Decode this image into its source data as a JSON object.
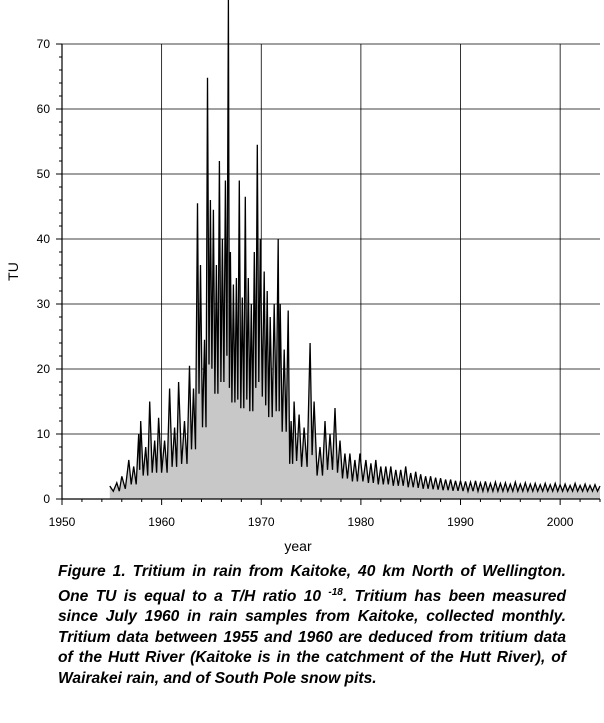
{
  "chart_data": {
    "type": "area",
    "title": "",
    "xlabel": "year",
    "ylabel": "TU",
    "xlim": [
      1950,
      2004
    ],
    "ylim": [
      0,
      70
    ],
    "xticks": [
      "1950",
      "1960",
      "1970",
      "1980",
      "1990",
      "2000"
    ],
    "yticks": [
      "0",
      "10",
      "20",
      "30",
      "40",
      "50",
      "60",
      "70"
    ],
    "grid": true,
    "fill_color": "#c8c8c8",
    "line_color": "#000000",
    "series": [
      {
        "name": "Tritium in rain, Kaitoke (monthly)",
        "peaks": [
          [
            1954.8,
            2
          ],
          [
            1955.5,
            2.5
          ],
          [
            1956.0,
            3.5
          ],
          [
            1956.7,
            6
          ],
          [
            1957.2,
            5
          ],
          [
            1957.7,
            10
          ],
          [
            1957.9,
            12
          ],
          [
            1958.4,
            8
          ],
          [
            1958.8,
            15
          ],
          [
            1959.3,
            9
          ],
          [
            1959.7,
            12.5
          ],
          [
            1960.3,
            9
          ],
          [
            1960.8,
            17
          ],
          [
            1961.3,
            11
          ],
          [
            1961.7,
            18
          ],
          [
            1962.3,
            12
          ],
          [
            1962.8,
            20.5
          ],
          [
            1963.2,
            17
          ],
          [
            1963.6,
            45.5
          ],
          [
            1963.9,
            36
          ],
          [
            1964.3,
            24.5
          ],
          [
            1964.6,
            64.8
          ],
          [
            1964.9,
            46
          ],
          [
            1965.2,
            44.5
          ],
          [
            1965.5,
            36
          ],
          [
            1965.8,
            52
          ],
          [
            1966.1,
            40
          ],
          [
            1966.4,
            49
          ],
          [
            1966.7,
            78
          ],
          [
            1966.9,
            38
          ],
          [
            1967.2,
            33
          ],
          [
            1967.5,
            34
          ],
          [
            1967.8,
            49
          ],
          [
            1968.1,
            31
          ],
          [
            1968.4,
            46.5
          ],
          [
            1968.7,
            34
          ],
          [
            1969.0,
            30
          ],
          [
            1969.3,
            38
          ],
          [
            1969.6,
            54.5
          ],
          [
            1969.9,
            40
          ],
          [
            1970.3,
            35
          ],
          [
            1970.6,
            32
          ],
          [
            1970.9,
            28
          ],
          [
            1971.3,
            30
          ],
          [
            1971.7,
            40
          ],
          [
            1971.9,
            30
          ],
          [
            1972.3,
            23
          ],
          [
            1972.7,
            29
          ],
          [
            1973.0,
            12
          ],
          [
            1973.3,
            15
          ],
          [
            1973.8,
            13
          ],
          [
            1974.3,
            11
          ],
          [
            1974.9,
            24
          ],
          [
            1975.3,
            15
          ],
          [
            1975.9,
            8
          ],
          [
            1976.4,
            12
          ],
          [
            1976.9,
            10
          ],
          [
            1977.4,
            14
          ],
          [
            1977.9,
            9
          ],
          [
            1978.4,
            7
          ],
          [
            1978.9,
            7
          ],
          [
            1979.4,
            6
          ],
          [
            1979.9,
            7
          ],
          [
            1980.5,
            6
          ],
          [
            1981.0,
            5.5
          ],
          [
            1981.5,
            6
          ],
          [
            1982.0,
            5
          ],
          [
            1982.5,
            5
          ],
          [
            1983.0,
            5
          ],
          [
            1983.5,
            4.5
          ],
          [
            1984.0,
            4.5
          ],
          [
            1984.5,
            5
          ],
          [
            1985.0,
            4
          ],
          [
            1985.5,
            4.2
          ],
          [
            1986.0,
            3.8
          ],
          [
            1986.5,
            3.5
          ],
          [
            1987.0,
            3.5
          ],
          [
            1987.5,
            3.3
          ],
          [
            1988.0,
            3.2
          ],
          [
            1988.5,
            3
          ],
          [
            1989.0,
            3
          ],
          [
            1989.5,
            2.8
          ],
          [
            1990.0,
            2.8
          ],
          [
            1990.5,
            2.7
          ],
          [
            1991.0,
            2.6
          ],
          [
            1991.5,
            2.8
          ],
          [
            1992.0,
            2.5
          ],
          [
            1992.5,
            2.7
          ],
          [
            1993.0,
            2.4
          ],
          [
            1993.5,
            2.6
          ],
          [
            1994.0,
            2.4
          ],
          [
            1994.5,
            2.5
          ],
          [
            1995.0,
            2.3
          ],
          [
            1995.5,
            2.6
          ],
          [
            1996.0,
            2.3
          ],
          [
            1996.5,
            2.5
          ],
          [
            1997.0,
            2.3
          ],
          [
            1997.5,
            2.4
          ],
          [
            1998.0,
            2.2
          ],
          [
            1998.5,
            2.4
          ],
          [
            1999.0,
            2.2
          ],
          [
            1999.5,
            2.4
          ],
          [
            2000.0,
            2.2
          ],
          [
            2000.5,
            2.3
          ],
          [
            2001.0,
            2.1
          ],
          [
            2001.5,
            2.4
          ],
          [
            2002.0,
            2.1
          ],
          [
            2002.5,
            2.3
          ],
          [
            2003.0,
            2.1
          ],
          [
            2003.5,
            2.2
          ],
          [
            2004.0,
            2.0
          ]
        ]
      }
    ]
  },
  "caption": {
    "lines": [
      "Figure 1. Tritium in rain from Kaitoke, 40 km North of",
      "Wellington. One TU is equal to a T/H ratio 10",
      "-18",
      ". Tritium has",
      "been measured since July 1960 in rain samples from Kaitoke,",
      "collected monthly. Tritium data between 1955 and 1960",
      "are deduced from tritium data of the Hutt River (Kaitoke is in",
      "the catchment of the Hutt River), of Wairakei rain, and of",
      "South Pole snow pits."
    ]
  }
}
